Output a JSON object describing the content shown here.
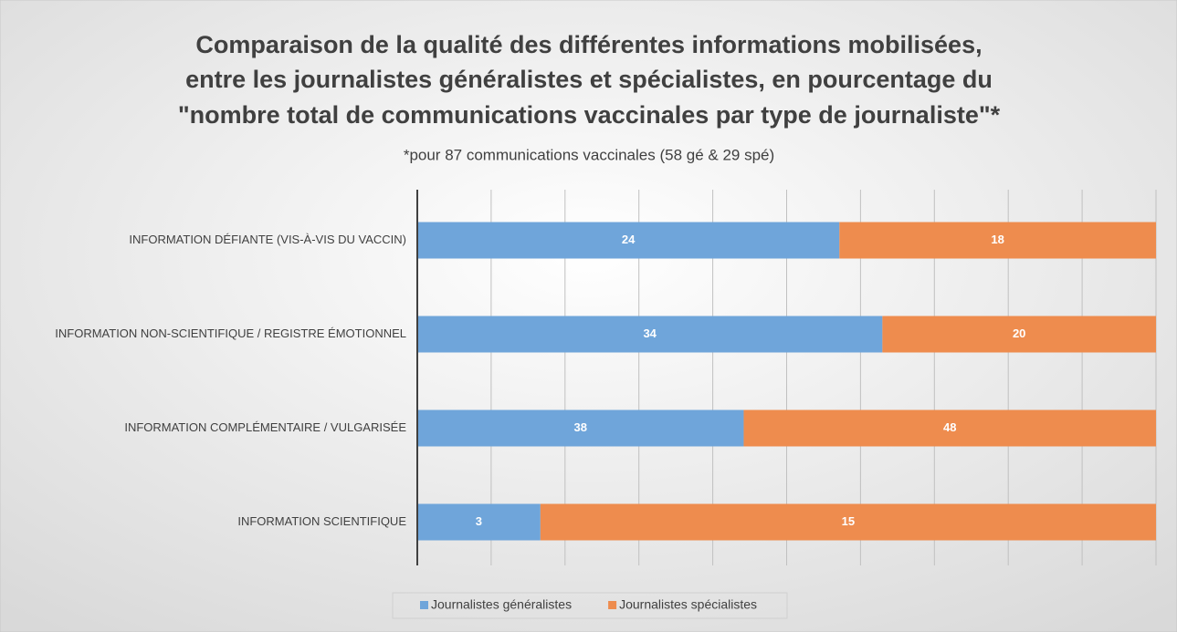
{
  "chart_data": {
    "type": "bar",
    "orientation": "horizontal",
    "stacking": "percent",
    "title": [
      "Comparaison de la qualité des différentes informations mobilisées,",
      "entre les journalistes généralistes et spécialistes, en pourcentage du",
      "\"nombre total de communications vaccinales par type de journaliste\"*"
    ],
    "subtitle": "*pour 87 communications vaccinales (58 gé & 29 spé)",
    "categories": [
      "INFORMATION DÉFIANTE (VIS-À-VIS DU VACCIN)",
      "INFORMATION NON-SCIENTIFIQUE / REGISTRE ÉMOTIONNEL",
      "INFORMATION COMPLÉMENTAIRE / VULGARISÉE",
      "INFORMATION SCIENTIFIQUE"
    ],
    "series": [
      {
        "name": "Journalistes généralistes",
        "color": "#6fa5da",
        "values": [
          24,
          34,
          38,
          3
        ]
      },
      {
        "name": "Journalistes spécialistes",
        "color": "#ee8c4e",
        "values": [
          18,
          20,
          48,
          15
        ]
      }
    ],
    "xlim": [
      0,
      100
    ],
    "xticks": [
      0,
      10,
      20,
      30,
      40,
      50,
      60,
      70,
      80,
      90,
      100
    ],
    "grid": true,
    "legend": "bottom"
  }
}
